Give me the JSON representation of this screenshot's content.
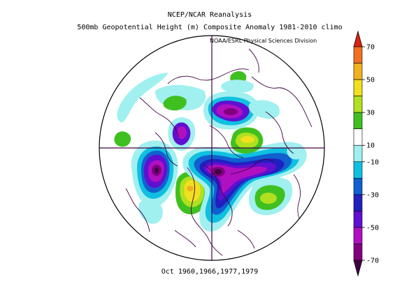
{
  "title": {
    "line1": "NCEP/NCAR Reanalysis",
    "line2": "500mb Geopotential Height (m) Composite Anomaly 1981-2010 climo"
  },
  "credit": "NOAA/ESRL Physical Sciences Division",
  "dates_label": "Oct 1960,1966,1977,1979",
  "colorbar": {
    "levels": [
      -70,
      -60,
      -50,
      -40,
      -30,
      -20,
      -10,
      10,
      20,
      30,
      40,
      50,
      60,
      70
    ],
    "tick_labels": [
      "70",
      "50",
      "30",
      "10",
      "-10",
      "-30",
      "-50",
      "-70"
    ],
    "tick_values": [
      70,
      50,
      30,
      10,
      -10,
      -30,
      -50,
      -70
    ],
    "colors_top_to_bottom": [
      "#e02010",
      "#f07020",
      "#f0b020",
      "#f0e020",
      "#b0e020",
      "#40c020",
      "#ffffff",
      "#a0f0f0",
      "#10c0e0",
      "#1060d0",
      "#2020c0",
      "#6010d0",
      "#b010c0",
      "#800080",
      "#400040"
    ]
  },
  "map": {
    "projection": "north-polar-stereographic",
    "anomaly_features": [
      {
        "name": "north-atlantic-low",
        "sign": "negative",
        "peak": -60
      },
      {
        "name": "siberia-low",
        "sign": "negative",
        "peak": -60
      },
      {
        "name": "western-north-america-high",
        "sign": "positive",
        "peak": 40
      },
      {
        "name": "northeast-pacific-low",
        "sign": "negative",
        "peak": -60
      },
      {
        "name": "central-asia-high",
        "sign": "positive",
        "peak": 30
      },
      {
        "name": "central-atlantic-high",
        "sign": "positive",
        "peak": 30
      },
      {
        "name": "east-asia-high",
        "sign": "positive",
        "peak": 20
      }
    ]
  }
}
